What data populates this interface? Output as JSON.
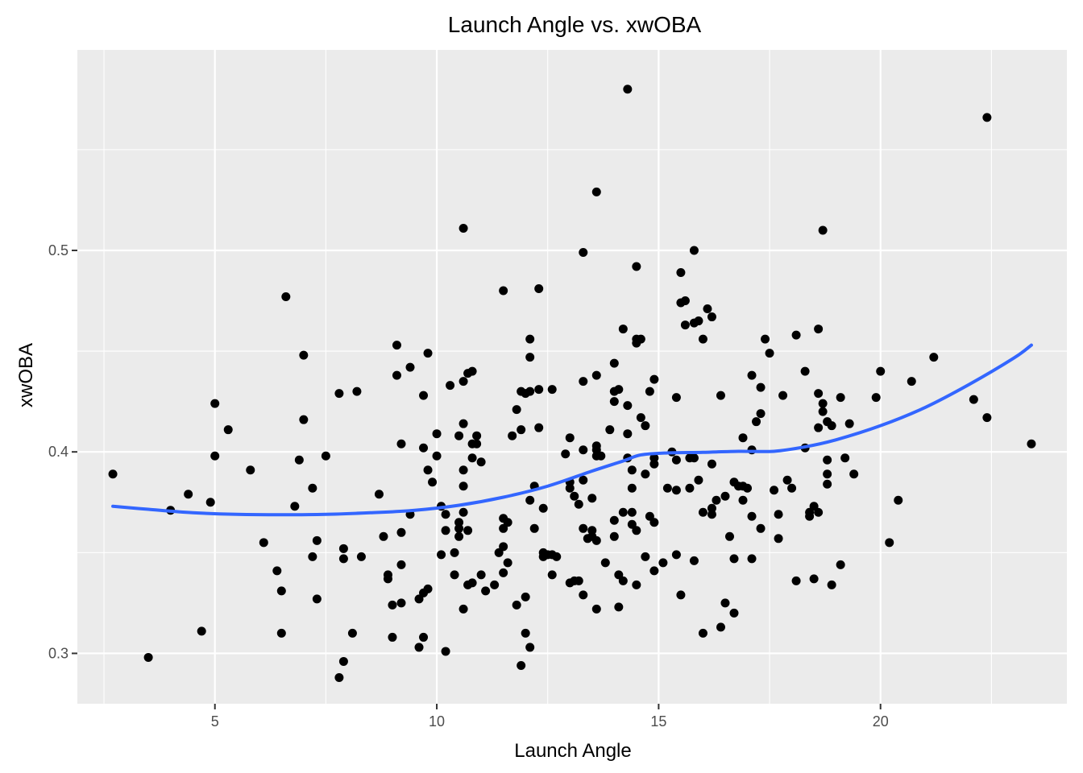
{
  "chart_data": {
    "type": "scatter",
    "title": "Launch Angle vs. xwOBA",
    "xlabel": "Launch Angle",
    "ylabel": "xwOBA",
    "xlim": [
      1.9,
      24.2
    ],
    "ylim": [
      0.275,
      0.5995
    ],
    "x_ticks": [
      5,
      10,
      15,
      20
    ],
    "x_tick_labels": [
      "5",
      "10",
      "15",
      "20"
    ],
    "x_minor_ticks": [
      2.5,
      7.5,
      12.5,
      17.5,
      22.5
    ],
    "y_ticks": [
      0.3,
      0.4,
      0.5
    ],
    "y_tick_labels": [
      "0.3",
      "0.4",
      "0.5"
    ],
    "y_minor_ticks": [
      0.35,
      0.45,
      0.55
    ],
    "grid": true,
    "legend": "none",
    "colors": {
      "panel": "#ebebeb",
      "grid": "#ffffff",
      "points": "#000000",
      "smooth": "#3366ff"
    },
    "points": [
      [
        2.7,
        0.389
      ],
      [
        3.5,
        0.298
      ],
      [
        4.0,
        0.371
      ],
      [
        4.4,
        0.379
      ],
      [
        4.7,
        0.311
      ],
      [
        4.9,
        0.375
      ],
      [
        5.0,
        0.424
      ],
      [
        5.0,
        0.398
      ],
      [
        5.3,
        0.411
      ],
      [
        5.8,
        0.391
      ],
      [
        6.1,
        0.355
      ],
      [
        6.4,
        0.341
      ],
      [
        6.5,
        0.331
      ],
      [
        6.5,
        0.31
      ],
      [
        6.6,
        0.477
      ],
      [
        6.8,
        0.373
      ],
      [
        6.9,
        0.396
      ],
      [
        7.0,
        0.448
      ],
      [
        7.0,
        0.416
      ],
      [
        7.2,
        0.382
      ],
      [
        7.2,
        0.348
      ],
      [
        7.3,
        0.356
      ],
      [
        7.3,
        0.327
      ],
      [
        7.5,
        0.398
      ],
      [
        7.8,
        0.429
      ],
      [
        7.8,
        0.288
      ],
      [
        7.9,
        0.352
      ],
      [
        7.9,
        0.347
      ],
      [
        7.9,
        0.296
      ],
      [
        8.1,
        0.31
      ],
      [
        8.2,
        0.43
      ],
      [
        8.3,
        0.348
      ],
      [
        8.7,
        0.379
      ],
      [
        8.8,
        0.358
      ],
      [
        8.9,
        0.339
      ],
      [
        8.9,
        0.337
      ],
      [
        9.0,
        0.308
      ],
      [
        9.0,
        0.324
      ],
      [
        9.1,
        0.453
      ],
      [
        9.1,
        0.438
      ],
      [
        9.2,
        0.404
      ],
      [
        9.2,
        0.36
      ],
      [
        9.2,
        0.344
      ],
      [
        9.2,
        0.325
      ],
      [
        9.4,
        0.442
      ],
      [
        9.4,
        0.369
      ],
      [
        9.6,
        0.327
      ],
      [
        9.6,
        0.303
      ],
      [
        9.7,
        0.428
      ],
      [
        9.7,
        0.402
      ],
      [
        9.7,
        0.33
      ],
      [
        9.7,
        0.308
      ],
      [
        9.8,
        0.449
      ],
      [
        9.8,
        0.391
      ],
      [
        9.8,
        0.332
      ],
      [
        9.9,
        0.385
      ],
      [
        10.0,
        0.409
      ],
      [
        10.0,
        0.398
      ],
      [
        10.1,
        0.373
      ],
      [
        10.1,
        0.349
      ],
      [
        10.2,
        0.369
      ],
      [
        10.2,
        0.361
      ],
      [
        10.2,
        0.301
      ],
      [
        10.3,
        0.433
      ],
      [
        10.4,
        0.35
      ],
      [
        10.4,
        0.339
      ],
      [
        10.5,
        0.408
      ],
      [
        10.5,
        0.365
      ],
      [
        10.5,
        0.362
      ],
      [
        10.5,
        0.358
      ],
      [
        10.6,
        0.511
      ],
      [
        10.6,
        0.435
      ],
      [
        10.6,
        0.414
      ],
      [
        10.6,
        0.391
      ],
      [
        10.6,
        0.383
      ],
      [
        10.6,
        0.37
      ],
      [
        10.6,
        0.322
      ],
      [
        10.7,
        0.439
      ],
      [
        10.7,
        0.361
      ],
      [
        10.7,
        0.334
      ],
      [
        10.8,
        0.44
      ],
      [
        10.8,
        0.404
      ],
      [
        10.8,
        0.397
      ],
      [
        10.8,
        0.335
      ],
      [
        10.9,
        0.408
      ],
      [
        10.9,
        0.404
      ],
      [
        11.0,
        0.395
      ],
      [
        11.0,
        0.339
      ],
      [
        11.1,
        0.331
      ],
      [
        11.3,
        0.334
      ],
      [
        11.4,
        0.35
      ],
      [
        11.5,
        0.48
      ],
      [
        11.5,
        0.367
      ],
      [
        11.5,
        0.362
      ],
      [
        11.5,
        0.353
      ],
      [
        11.5,
        0.34
      ],
      [
        11.6,
        0.365
      ],
      [
        11.6,
        0.345
      ],
      [
        11.7,
        0.408
      ],
      [
        11.8,
        0.421
      ],
      [
        11.8,
        0.324
      ],
      [
        11.9,
        0.43
      ],
      [
        11.9,
        0.411
      ],
      [
        11.9,
        0.294
      ],
      [
        12.0,
        0.429
      ],
      [
        12.0,
        0.328
      ],
      [
        12.0,
        0.31
      ],
      [
        12.1,
        0.456
      ],
      [
        12.1,
        0.447
      ],
      [
        12.1,
        0.43
      ],
      [
        12.1,
        0.376
      ],
      [
        12.1,
        0.303
      ],
      [
        12.2,
        0.383
      ],
      [
        12.2,
        0.362
      ],
      [
        12.3,
        0.481
      ],
      [
        12.3,
        0.431
      ],
      [
        12.3,
        0.412
      ],
      [
        12.4,
        0.372
      ],
      [
        12.4,
        0.35
      ],
      [
        12.4,
        0.348
      ],
      [
        12.5,
        0.349
      ],
      [
        12.6,
        0.431
      ],
      [
        12.6,
        0.349
      ],
      [
        12.6,
        0.339
      ],
      [
        12.7,
        0.348
      ],
      [
        12.9,
        0.399
      ],
      [
        13.0,
        0.407
      ],
      [
        13.0,
        0.385
      ],
      [
        13.0,
        0.382
      ],
      [
        13.0,
        0.335
      ],
      [
        13.1,
        0.378
      ],
      [
        13.1,
        0.336
      ],
      [
        13.2,
        0.374
      ],
      [
        13.2,
        0.336
      ],
      [
        13.3,
        0.499
      ],
      [
        13.3,
        0.435
      ],
      [
        13.3,
        0.401
      ],
      [
        13.3,
        0.386
      ],
      [
        13.3,
        0.362
      ],
      [
        13.3,
        0.329
      ],
      [
        13.4,
        0.357
      ],
      [
        13.5,
        0.377
      ],
      [
        13.5,
        0.361
      ],
      [
        13.5,
        0.358
      ],
      [
        13.6,
        0.529
      ],
      [
        13.6,
        0.438
      ],
      [
        13.6,
        0.403
      ],
      [
        13.6,
        0.401
      ],
      [
        13.6,
        0.398
      ],
      [
        13.6,
        0.356
      ],
      [
        13.6,
        0.322
      ],
      [
        13.7,
        0.398
      ],
      [
        13.8,
        0.345
      ],
      [
        13.9,
        0.411
      ],
      [
        14.0,
        0.444
      ],
      [
        14.0,
        0.43
      ],
      [
        14.0,
        0.425
      ],
      [
        14.0,
        0.366
      ],
      [
        14.0,
        0.358
      ],
      [
        14.1,
        0.431
      ],
      [
        14.1,
        0.339
      ],
      [
        14.1,
        0.323
      ],
      [
        14.2,
        0.461
      ],
      [
        14.2,
        0.37
      ],
      [
        14.2,
        0.336
      ],
      [
        14.3,
        0.58
      ],
      [
        14.3,
        0.423
      ],
      [
        14.3,
        0.409
      ],
      [
        14.3,
        0.397
      ],
      [
        14.4,
        0.391
      ],
      [
        14.4,
        0.382
      ],
      [
        14.4,
        0.37
      ],
      [
        14.4,
        0.364
      ],
      [
        14.5,
        0.492
      ],
      [
        14.5,
        0.456
      ],
      [
        14.5,
        0.454
      ],
      [
        14.5,
        0.361
      ],
      [
        14.5,
        0.334
      ],
      [
        14.6,
        0.456
      ],
      [
        14.6,
        0.417
      ],
      [
        14.7,
        0.413
      ],
      [
        14.7,
        0.389
      ],
      [
        14.7,
        0.348
      ],
      [
        14.8,
        0.43
      ],
      [
        14.8,
        0.368
      ],
      [
        14.9,
        0.436
      ],
      [
        14.9,
        0.397
      ],
      [
        14.9,
        0.394
      ],
      [
        14.9,
        0.365
      ],
      [
        14.9,
        0.341
      ],
      [
        15.1,
        0.345
      ],
      [
        15.2,
        0.382
      ],
      [
        15.3,
        0.4
      ],
      [
        15.4,
        0.427
      ],
      [
        15.4,
        0.396
      ],
      [
        15.4,
        0.381
      ],
      [
        15.4,
        0.349
      ],
      [
        15.5,
        0.489
      ],
      [
        15.5,
        0.474
      ],
      [
        15.5,
        0.329
      ],
      [
        15.6,
        0.475
      ],
      [
        15.6,
        0.463
      ],
      [
        15.7,
        0.397
      ],
      [
        15.7,
        0.382
      ],
      [
        15.8,
        0.5
      ],
      [
        15.8,
        0.464
      ],
      [
        15.8,
        0.397
      ],
      [
        15.8,
        0.346
      ],
      [
        15.9,
        0.465
      ],
      [
        15.9,
        0.386
      ],
      [
        16.0,
        0.456
      ],
      [
        16.0,
        0.37
      ],
      [
        16.0,
        0.31
      ],
      [
        16.1,
        0.471
      ],
      [
        16.2,
        0.467
      ],
      [
        16.2,
        0.394
      ],
      [
        16.2,
        0.372
      ],
      [
        16.2,
        0.369
      ],
      [
        16.3,
        0.376
      ],
      [
        16.4,
        0.428
      ],
      [
        16.4,
        0.313
      ],
      [
        16.5,
        0.325
      ],
      [
        16.5,
        0.378
      ],
      [
        16.6,
        0.358
      ],
      [
        16.7,
        0.385
      ],
      [
        16.7,
        0.347
      ],
      [
        16.7,
        0.32
      ],
      [
        16.8,
        0.383
      ],
      [
        16.9,
        0.407
      ],
      [
        16.9,
        0.376
      ],
      [
        16.9,
        0.383
      ],
      [
        17.0,
        0.382
      ],
      [
        17.1,
        0.438
      ],
      [
        17.1,
        0.401
      ],
      [
        17.1,
        0.368
      ],
      [
        17.1,
        0.347
      ],
      [
        17.2,
        0.415
      ],
      [
        17.3,
        0.432
      ],
      [
        17.3,
        0.419
      ],
      [
        17.3,
        0.362
      ],
      [
        17.4,
        0.456
      ],
      [
        17.5,
        0.449
      ],
      [
        17.6,
        0.381
      ],
      [
        17.7,
        0.369
      ],
      [
        17.7,
        0.357
      ],
      [
        17.8,
        0.428
      ],
      [
        17.9,
        0.386
      ],
      [
        18.0,
        0.382
      ],
      [
        18.1,
        0.458
      ],
      [
        18.1,
        0.336
      ],
      [
        18.3,
        0.44
      ],
      [
        18.3,
        0.402
      ],
      [
        18.4,
        0.37
      ],
      [
        18.4,
        0.368
      ],
      [
        18.5,
        0.373
      ],
      [
        18.5,
        0.337
      ],
      [
        18.6,
        0.461
      ],
      [
        18.6,
        0.429
      ],
      [
        18.6,
        0.412
      ],
      [
        18.6,
        0.37
      ],
      [
        18.7,
        0.51
      ],
      [
        18.7,
        0.424
      ],
      [
        18.7,
        0.42
      ],
      [
        18.8,
        0.415
      ],
      [
        18.8,
        0.396
      ],
      [
        18.8,
        0.389
      ],
      [
        18.8,
        0.384
      ],
      [
        18.9,
        0.413
      ],
      [
        18.9,
        0.334
      ],
      [
        19.1,
        0.427
      ],
      [
        19.1,
        0.344
      ],
      [
        19.2,
        0.397
      ],
      [
        19.3,
        0.414
      ],
      [
        19.4,
        0.389
      ],
      [
        19.9,
        0.427
      ],
      [
        20.0,
        0.44
      ],
      [
        20.2,
        0.355
      ],
      [
        20.4,
        0.376
      ],
      [
        20.7,
        0.435
      ],
      [
        21.2,
        0.447
      ],
      [
        22.1,
        0.426
      ],
      [
        22.4,
        0.566
      ],
      [
        22.4,
        0.417
      ],
      [
        23.4,
        0.404
      ]
    ],
    "smooth_line": [
      [
        2.7,
        0.373
      ],
      [
        3.5,
        0.3715
      ],
      [
        4.5,
        0.3698
      ],
      [
        5.5,
        0.369
      ],
      [
        6.5,
        0.3688
      ],
      [
        7.5,
        0.369
      ],
      [
        8.5,
        0.3698
      ],
      [
        9.5,
        0.371
      ],
      [
        10.5,
        0.3735
      ],
      [
        11.5,
        0.3775
      ],
      [
        12.5,
        0.383
      ],
      [
        13.5,
        0.3905
      ],
      [
        14.2,
        0.3955
      ],
      [
        14.6,
        0.3985
      ],
      [
        15.2,
        0.3995
      ],
      [
        16.0,
        0.3998
      ],
      [
        16.8,
        0.4003
      ],
      [
        17.6,
        0.4003
      ],
      [
        18.3,
        0.4025
      ],
      [
        19.0,
        0.406
      ],
      [
        20.0,
        0.413
      ],
      [
        21.0,
        0.422
      ],
      [
        22.0,
        0.4335
      ],
      [
        23.0,
        0.4465
      ],
      [
        23.4,
        0.453
      ]
    ]
  }
}
